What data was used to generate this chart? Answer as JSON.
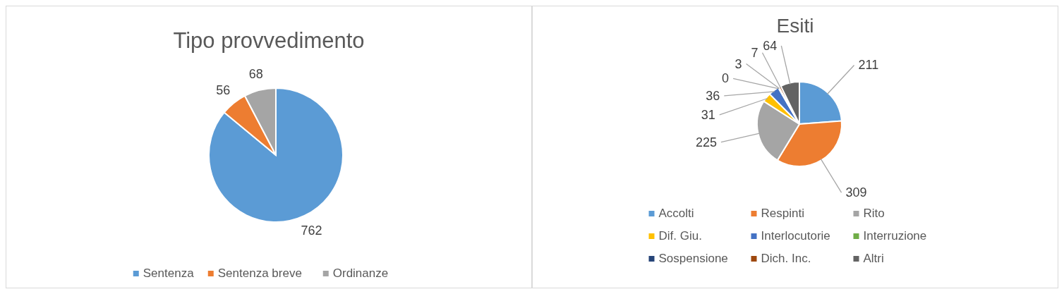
{
  "chart_data": [
    {
      "type": "pie",
      "title": "Tipo provvedimento",
      "categories": [
        "Sentenza",
        "Sentenza breve",
        "Ordinanze"
      ],
      "values": [
        762,
        56,
        68
      ],
      "colors": [
        "#5b9bd5",
        "#ed7d31",
        "#a5a5a5"
      ],
      "data_labels": true,
      "legend": "bottom"
    },
    {
      "type": "pie",
      "title": "Esiti",
      "categories": [
        "Accolti",
        "Respinti",
        "Rito",
        "Dif. Giu.",
        "Interlocutorie",
        "Interruzione",
        "Sospensione",
        "Dich. Inc.",
        "Altri"
      ],
      "values": [
        211,
        309,
        225,
        31,
        36,
        0,
        3,
        7,
        64
      ],
      "value_labels": [
        "211",
        "309",
        "225",
        "31",
        "36",
        "0",
        "3",
        "7",
        "64"
      ],
      "colors": [
        "#5b9bd5",
        "#ed7d31",
        "#a5a5a5",
        "#ffc000",
        "#4472c4",
        "#70ad47",
        "#264478",
        "#9e480e",
        "#636363"
      ],
      "legend": "bottom"
    }
  ]
}
